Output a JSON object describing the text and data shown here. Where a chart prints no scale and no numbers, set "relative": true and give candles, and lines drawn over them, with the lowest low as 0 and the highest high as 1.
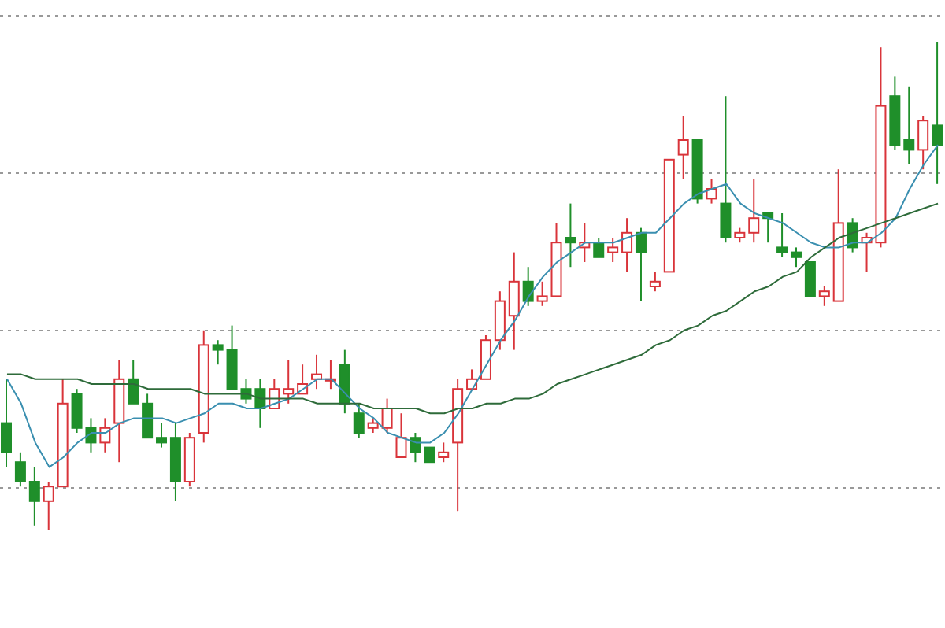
{
  "chart_data": {
    "type": "candlestick",
    "relative": true,
    "grid": "y",
    "categories": [
      null,
      null,
      null,
      null,
      null,
      null,
      null,
      null,
      null,
      null,
      null,
      null,
      null,
      null,
      null,
      null,
      null,
      null,
      null,
      null,
      null,
      null,
      null,
      null,
      null,
      null,
      null,
      null,
      null,
      null,
      null,
      null,
      null,
      null,
      null,
      null,
      null,
      null,
      null,
      null,
      null,
      null,
      null,
      null,
      null,
      null,
      null,
      null,
      null,
      null,
      null,
      null,
      null,
      null,
      null,
      null,
      null,
      null,
      null,
      null,
      null,
      null,
      null,
      null,
      null,
      null,
      null
    ],
    "ohlc": [
      [
        0.22,
        0.31,
        0.13,
        0.16
      ],
      [
        0.14,
        0.16,
        0.09,
        0.1
      ],
      [
        0.1,
        0.13,
        0.01,
        0.06
      ],
      [
        0.06,
        0.1,
        0,
        0.09
      ],
      [
        0.09,
        0.31,
        0.09,
        0.26
      ],
      [
        0.28,
        0.29,
        0.2,
        0.21
      ],
      [
        0.21,
        0.23,
        0.16,
        0.18
      ],
      [
        0.18,
        0.23,
        0.16,
        0.21
      ],
      [
        0.22,
        0.35,
        0.14,
        0.31
      ],
      [
        0.31,
        0.35,
        0.26,
        0.26
      ],
      [
        0.26,
        0.28,
        0.19,
        0.19
      ],
      [
        0.19,
        0.22,
        0.17,
        0.18
      ],
      [
        0.19,
        0.22,
        0.06,
        0.1
      ],
      [
        0.1,
        0.2,
        0.09,
        0.19
      ],
      [
        0.2,
        0.41,
        0.18,
        0.38
      ],
      [
        0.38,
        0.39,
        0.34,
        0.37
      ],
      [
        0.37,
        0.42,
        0.29,
        0.29
      ],
      [
        0.29,
        0.31,
        0.26,
        0.27
      ],
      [
        0.29,
        0.31,
        0.21,
        0.25
      ],
      [
        0.25,
        0.31,
        0.25,
        0.29
      ],
      [
        0.28,
        0.35,
        0.26,
        0.29
      ],
      [
        0.28,
        0.34,
        0.28,
        0.3
      ],
      [
        0.31,
        0.36,
        0.29,
        0.32
      ],
      [
        0.31,
        0.35,
        0.29,
        0.31
      ],
      [
        0.34,
        0.37,
        0.24,
        0.26
      ],
      [
        0.24,
        0.26,
        0.19,
        0.2
      ],
      [
        0.21,
        0.23,
        0.2,
        0.22
      ],
      [
        0.21,
        0.27,
        0.2,
        0.25
      ],
      [
        0.15,
        0.24,
        0.15,
        0.19
      ],
      [
        0.19,
        0.2,
        0.14,
        0.16
      ],
      [
        0.17,
        0.17,
        0.14,
        0.14
      ],
      [
        0.15,
        0.18,
        0.14,
        0.16
      ],
      [
        0.18,
        0.31,
        0.04,
        0.29
      ],
      [
        0.29,
        0.33,
        0.29,
        0.31
      ],
      [
        0.31,
        0.4,
        0.31,
        0.39
      ],
      [
        0.39,
        0.49,
        0.37,
        0.47
      ],
      [
        0.44,
        0.57,
        0.37,
        0.51
      ],
      [
        0.51,
        0.54,
        0.46,
        0.47
      ],
      [
        0.47,
        0.51,
        0.46,
        0.48
      ],
      [
        0.48,
        0.63,
        0.48,
        0.59
      ],
      [
        0.6,
        0.67,
        0.54,
        0.59
      ],
      [
        0.58,
        0.63,
        0.55,
        0.59
      ],
      [
        0.59,
        0.6,
        0.56,
        0.56
      ],
      [
        0.57,
        0.6,
        0.55,
        0.58
      ],
      [
        0.57,
        0.64,
        0.53,
        0.61
      ],
      [
        0.61,
        0.62,
        0.47,
        0.57
      ],
      [
        0.5,
        0.53,
        0.49,
        0.51
      ],
      [
        0.53,
        0.76,
        0.53,
        0.76
      ],
      [
        0.77,
        0.85,
        0.72,
        0.8
      ],
      [
        0.8,
        0.8,
        0.67,
        0.68
      ],
      [
        0.68,
        0.72,
        0.67,
        0.7
      ],
      [
        0.67,
        0.89,
        0.59,
        0.6
      ],
      [
        0.6,
        0.62,
        0.59,
        0.61
      ],
      [
        0.61,
        0.72,
        0.59,
        0.64
      ],
      [
        0.65,
        0.65,
        0.59,
        0.64
      ],
      [
        0.58,
        0.65,
        0.56,
        0.57
      ],
      [
        0.57,
        0.58,
        0.54,
        0.56
      ],
      [
        0.55,
        0.55,
        0.48,
        0.48
      ],
      [
        0.48,
        0.5,
        0.46,
        0.49
      ],
      [
        0.47,
        0.74,
        0.47,
        0.63
      ],
      [
        0.63,
        0.64,
        0.57,
        0.58
      ],
      [
        0.59,
        0.61,
        0.53,
        0.6
      ],
      [
        0.59,
        0.99,
        0.58,
        0.87
      ],
      [
        0.89,
        0.93,
        0.78,
        0.79
      ],
      [
        0.8,
        0.91,
        0.75,
        0.78
      ],
      [
        0.78,
        0.85,
        0.74,
        0.84
      ],
      [
        0.83,
        1,
        0.71,
        0.79
      ]
    ],
    "series": [
      {
        "type": "line",
        "color": "#3a8fb0",
        "values": [
          0.31,
          0.26,
          0.18,
          0.13,
          0.15,
          0.18,
          0.2,
          0.2,
          0.22,
          0.23,
          0.23,
          0.23,
          0.22,
          0.23,
          0.24,
          0.26,
          0.26,
          0.25,
          0.25,
          0.26,
          0.27,
          0.29,
          0.31,
          0.31,
          0.28,
          0.25,
          0.23,
          0.2,
          0.19,
          0.18,
          0.18,
          0.2,
          0.24,
          0.29,
          0.34,
          0.39,
          0.43,
          0.48,
          0.52,
          0.55,
          0.57,
          0.59,
          0.59,
          0.59,
          0.6,
          0.61,
          0.61,
          0.64,
          0.67,
          0.69,
          0.7,
          0.71,
          0.67,
          0.65,
          0.64,
          0.63,
          0.61,
          0.59,
          0.58,
          0.58,
          0.59,
          0.59,
          0.61,
          0.64,
          0.7,
          0.75,
          0.79
        ]
      },
      {
        "type": "line",
        "color": "#2e6b3a",
        "values": [
          0.32,
          0.32,
          0.31,
          0.31,
          0.31,
          0.31,
          0.3,
          0.3,
          0.3,
          0.3,
          0.29,
          0.29,
          0.29,
          0.29,
          0.28,
          0.28,
          0.28,
          0.28,
          0.27,
          0.27,
          0.27,
          0.27,
          0.26,
          0.26,
          0.26,
          0.26,
          0.25,
          0.25,
          0.25,
          0.25,
          0.24,
          0.24,
          0.25,
          0.25,
          0.26,
          0.26,
          0.27,
          0.27,
          0.28,
          0.3,
          0.31,
          0.32,
          0.33,
          0.34,
          0.35,
          0.36,
          0.38,
          0.39,
          0.41,
          0.42,
          0.44,
          0.45,
          0.47,
          0.49,
          0.5,
          0.52,
          0.53,
          0.56,
          0.58,
          0.6,
          0.61,
          0.62,
          0.63,
          0.64,
          0.65,
          0.66,
          0.67
        ]
      }
    ]
  }
}
